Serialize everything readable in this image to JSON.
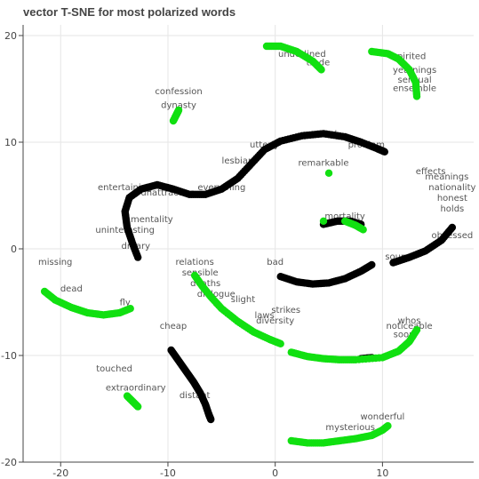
{
  "chart_data": {
    "type": "scatter",
    "title": "vector T-SNE for most polarized words",
    "xlabel": "",
    "ylabel": "",
    "xlim": [
      -23.5,
      18.5
    ],
    "ylim": [
      -20,
      21
    ],
    "x_ticks": [
      -20,
      -10,
      0,
      10
    ],
    "y_ticks": [
      -20,
      -10,
      0,
      10,
      20
    ],
    "grid": true,
    "colors": {
      "positive": "#11e011",
      "negative": "#000000",
      "label": "#555555",
      "axis": "#444444",
      "grid": "#e6e6e6"
    },
    "clusters": [
      {
        "color_group": "negative",
        "points": [
          [
            -12.8,
            -0.8
          ],
          [
            -13.3,
            0.5
          ],
          [
            -13.8,
            2.0
          ],
          [
            -14.0,
            3.5
          ],
          [
            -13.6,
            4.8
          ],
          [
            -12.5,
            5.6
          ],
          [
            -11.0,
            6.0
          ],
          [
            -9.5,
            5.6
          ],
          [
            -8.0,
            5.1
          ],
          [
            -6.5,
            5.1
          ],
          [
            -5.0,
            5.6
          ],
          [
            -3.5,
            6.6
          ],
          [
            -2.2,
            8.0
          ],
          [
            -1.0,
            9.3
          ],
          [
            0.5,
            10.1
          ],
          [
            2.5,
            10.6
          ],
          [
            4.5,
            10.8
          ],
          [
            6.5,
            10.5
          ],
          [
            8.0,
            10.0
          ],
          [
            9.5,
            9.4
          ],
          [
            10.2,
            9.1
          ]
        ]
      },
      {
        "color_group": "negative",
        "points": [
          [
            9.0,
            -1.5
          ],
          [
            8.0,
            -2.1
          ],
          [
            6.5,
            -2.8
          ],
          [
            5.0,
            -3.2
          ],
          [
            3.5,
            -3.3
          ],
          [
            2.0,
            -3.1
          ],
          [
            0.5,
            -2.6
          ]
        ]
      },
      {
        "color_group": "negative",
        "points": [
          [
            11.0,
            -1.3
          ],
          [
            12.5,
            -0.8
          ],
          [
            14.0,
            -0.2
          ],
          [
            15.5,
            0.8
          ],
          [
            16.5,
            2.0
          ]
        ]
      },
      {
        "color_group": "negative",
        "points": [
          [
            -9.7,
            -9.5
          ],
          [
            -9.0,
            -10.5
          ],
          [
            -8.3,
            -11.5
          ],
          [
            -7.6,
            -12.5
          ],
          [
            -7.0,
            -13.5
          ],
          [
            -6.5,
            -14.6
          ],
          [
            -6.2,
            -15.5
          ],
          [
            -6.0,
            -16.0
          ]
        ]
      },
      {
        "color_group": "negative",
        "points": [
          [
            4.5,
            2.3
          ],
          [
            5.8,
            2.6
          ],
          [
            7.0,
            2.6
          ],
          [
            8.0,
            2.3
          ]
        ]
      },
      {
        "color_group": "negative",
        "points": [
          [
            8.0,
            -10.3
          ],
          [
            9.0,
            -10.2
          ]
        ]
      },
      {
        "color_group": "positive",
        "points": [
          [
            -21.5,
            -4.0
          ],
          [
            -20.5,
            -4.8
          ],
          [
            -19.0,
            -5.5
          ],
          [
            -17.5,
            -6.0
          ],
          [
            -16.0,
            -6.2
          ],
          [
            -14.5,
            -6.0
          ],
          [
            -13.5,
            -5.6
          ]
        ]
      },
      {
        "color_group": "positive",
        "points": [
          [
            -13.8,
            -13.8
          ],
          [
            -13.3,
            -14.3
          ],
          [
            -12.8,
            -14.8
          ]
        ]
      },
      {
        "color_group": "positive",
        "points": [
          [
            -9.5,
            12.0
          ],
          [
            -9.2,
            12.6
          ],
          [
            -9.0,
            13.0
          ]
        ]
      },
      {
        "color_group": "positive",
        "points": [
          [
            -0.8,
            19.0
          ],
          [
            0.5,
            19.0
          ],
          [
            2.0,
            18.5
          ],
          [
            3.5,
            17.6
          ],
          [
            4.3,
            16.8
          ]
        ]
      },
      {
        "color_group": "positive",
        "points": [
          [
            9.0,
            18.5
          ],
          [
            10.5,
            18.3
          ],
          [
            11.5,
            17.8
          ],
          [
            12.5,
            16.8
          ],
          [
            13.1,
            15.6
          ],
          [
            13.2,
            14.3
          ]
        ]
      },
      {
        "color_group": "positive",
        "points": [
          [
            5.0,
            7.1
          ]
        ]
      },
      {
        "color_group": "positive",
        "points": [
          [
            6.5,
            2.6
          ],
          [
            7.5,
            2.2
          ],
          [
            8.2,
            1.8
          ]
        ]
      },
      {
        "color_group": "positive",
        "points": [
          [
            4.5,
            2.6
          ]
        ]
      },
      {
        "color_group": "positive",
        "points": [
          [
            -7.5,
            -2.5
          ],
          [
            -6.8,
            -3.5
          ],
          [
            -6.0,
            -4.5
          ],
          [
            -5.0,
            -5.6
          ],
          [
            -3.5,
            -6.8
          ],
          [
            -2.0,
            -7.8
          ],
          [
            -0.5,
            -8.5
          ],
          [
            0.5,
            -8.9
          ]
        ]
      },
      {
        "color_group": "positive",
        "points": [
          [
            1.5,
            -9.7
          ],
          [
            3.0,
            -10.1
          ],
          [
            4.5,
            -10.3
          ],
          [
            6.0,
            -10.4
          ],
          [
            7.5,
            -10.4
          ],
          [
            10.0,
            -10.2
          ],
          [
            11.5,
            -9.6
          ],
          [
            12.5,
            -8.7
          ],
          [
            13.2,
            -7.6
          ]
        ]
      },
      {
        "color_group": "positive",
        "points": [
          [
            1.5,
            -18.0
          ],
          [
            3.0,
            -18.2
          ],
          [
            4.5,
            -18.2
          ],
          [
            6.0,
            -18.0
          ],
          [
            7.5,
            -17.8
          ],
          [
            9.0,
            -17.5
          ],
          [
            10.0,
            -17.0
          ],
          [
            10.5,
            -16.6
          ]
        ]
      }
    ],
    "word_labels": [
      {
        "text": "ensemble",
        "x": 13.0,
        "y": 14.8
      },
      {
        "text": "sensual",
        "x": 13.0,
        "y": 15.6
      },
      {
        "text": "yearnings",
        "x": 13.0,
        "y": 16.5
      },
      {
        "text": "spirited",
        "x": 12.5,
        "y": 17.8
      },
      {
        "text": "underlined",
        "x": 2.5,
        "y": 18.0
      },
      {
        "text": "trade",
        "x": 4.0,
        "y": 17.2
      },
      {
        "text": "confession",
        "x": -9.0,
        "y": 14.5
      },
      {
        "text": "dynasty",
        "x": -9.0,
        "y": 13.2
      },
      {
        "text": "mentality",
        "x": -11.5,
        "y": 2.5
      },
      {
        "text": "uninteresting",
        "x": -14.0,
        "y": 1.5
      },
      {
        "text": "dreary",
        "x": -13.0,
        "y": 0.0
      },
      {
        "text": "missing",
        "x": -20.5,
        "y": -1.5
      },
      {
        "text": "dead",
        "x": -19.0,
        "y": -4.0
      },
      {
        "text": "fly",
        "x": -14.0,
        "y": -5.3
      },
      {
        "text": "touched",
        "x": -15.0,
        "y": -11.5
      },
      {
        "text": "extraordinary",
        "x": -13.0,
        "y": -13.3
      },
      {
        "text": "cheap",
        "x": -9.5,
        "y": -7.5
      },
      {
        "text": "distant",
        "x": -7.5,
        "y": -14.0
      },
      {
        "text": "relations",
        "x": -7.5,
        "y": -1.5
      },
      {
        "text": "sensible",
        "x": -7.0,
        "y": -2.5
      },
      {
        "text": "deaths",
        "x": -6.5,
        "y": -3.5
      },
      {
        "text": "dialogue",
        "x": -5.5,
        "y": -4.5
      },
      {
        "text": "slight",
        "x": -3.0,
        "y": -5.0
      },
      {
        "text": "strikes",
        "x": 1.0,
        "y": -6.0
      },
      {
        "text": "laws",
        "x": -1.0,
        "y": -6.5
      },
      {
        "text": "diversity",
        "x": 0.0,
        "y": -7.0
      },
      {
        "text": "whos",
        "x": 12.5,
        "y": -7.0
      },
      {
        "text": "noticeable",
        "x": 12.5,
        "y": -7.5
      },
      {
        "text": "soon",
        "x": 12.0,
        "y": -8.3
      },
      {
        "text": "mysterious",
        "x": 7.0,
        "y": -17.0
      },
      {
        "text": "wonderful",
        "x": 10.0,
        "y": -16.0
      },
      {
        "text": "remarkable",
        "x": 4.5,
        "y": 7.8
      },
      {
        "text": "nationality",
        "x": 16.5,
        "y": 5.5
      },
      {
        "text": "honest",
        "x": 16.5,
        "y": 4.5
      },
      {
        "text": "holds",
        "x": 16.5,
        "y": 3.5
      },
      {
        "text": "meanings",
        "x": 16.0,
        "y": 6.5
      },
      {
        "text": "obsessed",
        "x": 16.5,
        "y": 1.0
      },
      {
        "text": "mortality",
        "x": 6.5,
        "y": 2.8
      },
      {
        "text": "sound",
        "x": 11.5,
        "y": -1.0
      },
      {
        "text": "bad",
        "x": 0.0,
        "y": -1.5
      },
      {
        "text": "entertaining",
        "x": -14.0,
        "y": 5.5
      },
      {
        "text": "unattractive",
        "x": -10.0,
        "y": 5.0
      },
      {
        "text": "lesbian",
        "x": -3.5,
        "y": 8.0
      },
      {
        "text": "utterly",
        "x": -1.0,
        "y": 9.5
      },
      {
        "text": "problem",
        "x": 8.5,
        "y": 9.5
      },
      {
        "text": "trash",
        "x": 5.0,
        "y": 10.5
      },
      {
        "text": "everything",
        "x": -5.0,
        "y": 5.5
      },
      {
        "text": "effects",
        "x": 14.5,
        "y": 7.0
      }
    ]
  }
}
